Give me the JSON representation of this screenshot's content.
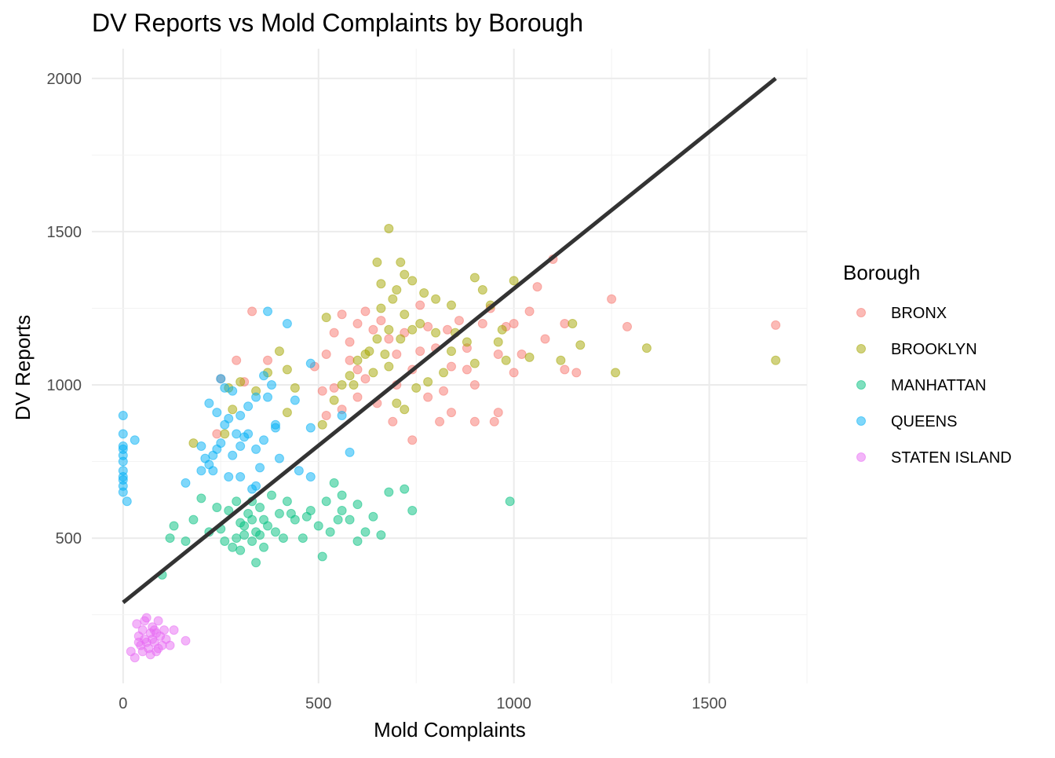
{
  "chart_data": {
    "type": "scatter",
    "title": "DV Reports vs Mold Complaints by Borough",
    "xlabel": "Mold Complaints",
    "ylabel": "DV Reports",
    "xlim": [
      -80,
      1750
    ],
    "ylim": [
      26,
      2097
    ],
    "x_ticks": [
      0,
      500,
      1000,
      1500
    ],
    "y_ticks": [
      500,
      1000,
      1500,
      2000
    ],
    "grid": true,
    "legend": {
      "title": "Borough",
      "placement": "right"
    },
    "trend_line": {
      "type": "linear",
      "color": "#333333",
      "points": [
        [
          0,
          290
        ],
        [
          1670,
          2000
        ]
      ]
    },
    "series": [
      {
        "name": "BRONX",
        "color": "#F8766D",
        "points": [
          [
            330,
            1240
          ],
          [
            290,
            1080
          ],
          [
            370,
            1080
          ],
          [
            250,
            1020
          ],
          [
            310,
            1010
          ],
          [
            490,
            1060
          ],
          [
            510,
            980
          ],
          [
            520,
            1100
          ],
          [
            560,
            1230
          ],
          [
            580,
            1140
          ],
          [
            600,
            1050
          ],
          [
            620,
            1240
          ],
          [
            640,
            1180
          ],
          [
            660,
            1210
          ],
          [
            680,
            1150
          ],
          [
            700,
            1100
          ],
          [
            720,
            1170
          ],
          [
            740,
            1050
          ],
          [
            760,
            1260
          ],
          [
            780,
            1190
          ],
          [
            800,
            1120
          ],
          [
            820,
            980
          ],
          [
            840,
            1060
          ],
          [
            860,
            1210
          ],
          [
            880,
            1050
          ],
          [
            900,
            880
          ],
          [
            920,
            1200
          ],
          [
            940,
            1250
          ],
          [
            960,
            1100
          ],
          [
            980,
            1190
          ],
          [
            1000,
            1200
          ],
          [
            1020,
            1100
          ],
          [
            1040,
            1240
          ],
          [
            1060,
            1320
          ],
          [
            1080,
            1150
          ],
          [
            1100,
            1410
          ],
          [
            1130,
            1200
          ],
          [
            1160,
            1040
          ],
          [
            1250,
            1280
          ],
          [
            1290,
            1190
          ],
          [
            1670,
            1195
          ],
          [
            540,
            990
          ],
          [
            560,
            920
          ],
          [
            600,
            960
          ],
          [
            650,
            940
          ],
          [
            690,
            880
          ],
          [
            740,
            820
          ],
          [
            780,
            960
          ],
          [
            810,
            880
          ],
          [
            840,
            910
          ],
          [
            900,
            1000
          ],
          [
            950,
            880
          ],
          [
            960,
            910
          ],
          [
            1130,
            1050
          ],
          [
            1000,
            1040
          ],
          [
            580,
            1080
          ],
          [
            620,
            1020
          ],
          [
            700,
            1000
          ],
          [
            760,
            1110
          ],
          [
            830,
            1180
          ],
          [
            880,
            1120
          ],
          [
            240,
            840
          ],
          [
            540,
            1170
          ],
          [
            600,
            1200
          ],
          [
            520,
            900
          ]
        ]
      },
      {
        "name": "BROOKLYN",
        "color": "#A3A500",
        "points": [
          [
            680,
            1510
          ],
          [
            650,
            1400
          ],
          [
            710,
            1400
          ],
          [
            720,
            1360
          ],
          [
            660,
            1330
          ],
          [
            700,
            1310
          ],
          [
            740,
            1340
          ],
          [
            770,
            1300
          ],
          [
            800,
            1280
          ],
          [
            840,
            1260
          ],
          [
            900,
            1350
          ],
          [
            1000,
            1340
          ],
          [
            940,
            1260
          ],
          [
            970,
            1180
          ],
          [
            1150,
            1200
          ],
          [
            1170,
            1130
          ],
          [
            1340,
            1120
          ],
          [
            1260,
            1040
          ],
          [
            1670,
            1080
          ],
          [
            1120,
            1080
          ],
          [
            1040,
            1090
          ],
          [
            960,
            1140
          ],
          [
            900,
            1070
          ],
          [
            880,
            1140
          ],
          [
            840,
            1110
          ],
          [
            800,
            1170
          ],
          [
            760,
            1200
          ],
          [
            720,
            1230
          ],
          [
            680,
            1180
          ],
          [
            650,
            1150
          ],
          [
            630,
            1110
          ],
          [
            600,
            1080
          ],
          [
            580,
            1030
          ],
          [
            560,
            1000
          ],
          [
            540,
            950
          ],
          [
            510,
            870
          ],
          [
            520,
            1220
          ],
          [
            400,
            1110
          ],
          [
            420,
            1050
          ],
          [
            440,
            990
          ],
          [
            420,
            910
          ],
          [
            370,
            1040
          ],
          [
            340,
            980
          ],
          [
            300,
            1010
          ],
          [
            280,
            920
          ],
          [
            270,
            990
          ],
          [
            260,
            840
          ],
          [
            180,
            810
          ],
          [
            680,
            1060
          ],
          [
            700,
            940
          ],
          [
            720,
            920
          ],
          [
            750,
            990
          ],
          [
            780,
            1010
          ],
          [
            820,
            1040
          ],
          [
            660,
            1250
          ],
          [
            690,
            1280
          ],
          [
            620,
            1100
          ],
          [
            640,
            1040
          ],
          [
            670,
            1100
          ],
          [
            710,
            1150
          ],
          [
            740,
            1180
          ],
          [
            850,
            1170
          ],
          [
            920,
            1310
          ],
          [
            980,
            1080
          ],
          [
            590,
            1000
          ]
        ]
      },
      {
        "name": "MANHATTAN",
        "color": "#00BF7D",
        "points": [
          [
            100,
            380
          ],
          [
            120,
            500
          ],
          [
            130,
            540
          ],
          [
            160,
            490
          ],
          [
            180,
            560
          ],
          [
            200,
            630
          ],
          [
            220,
            520
          ],
          [
            250,
            530
          ],
          [
            260,
            490
          ],
          [
            270,
            590
          ],
          [
            280,
            470
          ],
          [
            290,
            620
          ],
          [
            300,
            550
          ],
          [
            310,
            510
          ],
          [
            320,
            580
          ],
          [
            330,
            620
          ],
          [
            340,
            520
          ],
          [
            350,
            600
          ],
          [
            360,
            470
          ],
          [
            370,
            540
          ],
          [
            380,
            640
          ],
          [
            400,
            580
          ],
          [
            410,
            500
          ],
          [
            420,
            620
          ],
          [
            440,
            560
          ],
          [
            460,
            500
          ],
          [
            480,
            590
          ],
          [
            500,
            540
          ],
          [
            520,
            620
          ],
          [
            540,
            680
          ],
          [
            560,
            590
          ],
          [
            580,
            560
          ],
          [
            600,
            610
          ],
          [
            620,
            520
          ],
          [
            640,
            570
          ],
          [
            660,
            510
          ],
          [
            680,
            650
          ],
          [
            720,
            660
          ],
          [
            740,
            590
          ],
          [
            990,
            620
          ],
          [
            510,
            440
          ],
          [
            340,
            420
          ],
          [
            300,
            460
          ],
          [
            330,
            560
          ],
          [
            360,
            560
          ],
          [
            310,
            540
          ],
          [
            350,
            510
          ],
          [
            390,
            520
          ],
          [
            430,
            580
          ],
          [
            470,
            570
          ],
          [
            530,
            520
          ],
          [
            550,
            560
          ],
          [
            600,
            490
          ],
          [
            330,
            490
          ],
          [
            290,
            500
          ],
          [
            560,
            640
          ],
          [
            240,
            600
          ]
        ]
      },
      {
        "name": "QUEENS",
        "color": "#00B0F6",
        "points": [
          [
            0,
            900
          ],
          [
            0,
            840
          ],
          [
            0,
            800
          ],
          [
            0,
            790
          ],
          [
            0,
            770
          ],
          [
            0,
            750
          ],
          [
            0,
            720
          ],
          [
            0,
            700
          ],
          [
            0,
            690
          ],
          [
            0,
            670
          ],
          [
            0,
            650
          ],
          [
            10,
            620
          ],
          [
            30,
            820
          ],
          [
            370,
            1240
          ],
          [
            420,
            1200
          ],
          [
            250,
            1020
          ],
          [
            260,
            990
          ],
          [
            280,
            980
          ],
          [
            300,
            900
          ],
          [
            320,
            930
          ],
          [
            340,
            960
          ],
          [
            360,
            1030
          ],
          [
            380,
            1000
          ],
          [
            390,
            870
          ],
          [
            400,
            760
          ],
          [
            360,
            820
          ],
          [
            340,
            790
          ],
          [
            320,
            840
          ],
          [
            300,
            800
          ],
          [
            280,
            770
          ],
          [
            260,
            870
          ],
          [
            250,
            810
          ],
          [
            240,
            790
          ],
          [
            230,
            770
          ],
          [
            220,
            740
          ],
          [
            210,
            760
          ],
          [
            200,
            720
          ],
          [
            230,
            720
          ],
          [
            270,
            700
          ],
          [
            300,
            700
          ],
          [
            340,
            670
          ],
          [
            350,
            730
          ],
          [
            390,
            860
          ],
          [
            440,
            950
          ],
          [
            480,
            1070
          ],
          [
            480,
            860
          ],
          [
            450,
            720
          ],
          [
            480,
            700
          ],
          [
            560,
            900
          ],
          [
            580,
            780
          ],
          [
            220,
            940
          ],
          [
            240,
            910
          ],
          [
            270,
            890
          ],
          [
            290,
            840
          ],
          [
            310,
            830
          ],
          [
            160,
            680
          ],
          [
            200,
            800
          ],
          [
            330,
            660
          ],
          [
            370,
            960
          ]
        ]
      },
      {
        "name": "STATEN ISLAND",
        "color": "#E76BF3",
        "points": [
          [
            20,
            130
          ],
          [
            30,
            110
          ],
          [
            40,
            180
          ],
          [
            45,
            150
          ],
          [
            50,
            200
          ],
          [
            55,
            170
          ],
          [
            60,
            240
          ],
          [
            65,
            140
          ],
          [
            70,
            190
          ],
          [
            75,
            210
          ],
          [
            80,
            160
          ],
          [
            85,
            130
          ],
          [
            90,
            230
          ],
          [
            95,
            180
          ],
          [
            100,
            150
          ],
          [
            105,
            200
          ],
          [
            110,
            170
          ],
          [
            120,
            150
          ],
          [
            130,
            200
          ],
          [
            160,
            165
          ],
          [
            35,
            220
          ],
          [
            50,
            130
          ],
          [
            60,
            160
          ],
          [
            70,
            120
          ],
          [
            80,
            200
          ],
          [
            90,
            140
          ],
          [
            40,
            160
          ],
          [
            55,
            230
          ],
          [
            75,
            170
          ],
          [
            85,
            190
          ]
        ]
      }
    ]
  }
}
